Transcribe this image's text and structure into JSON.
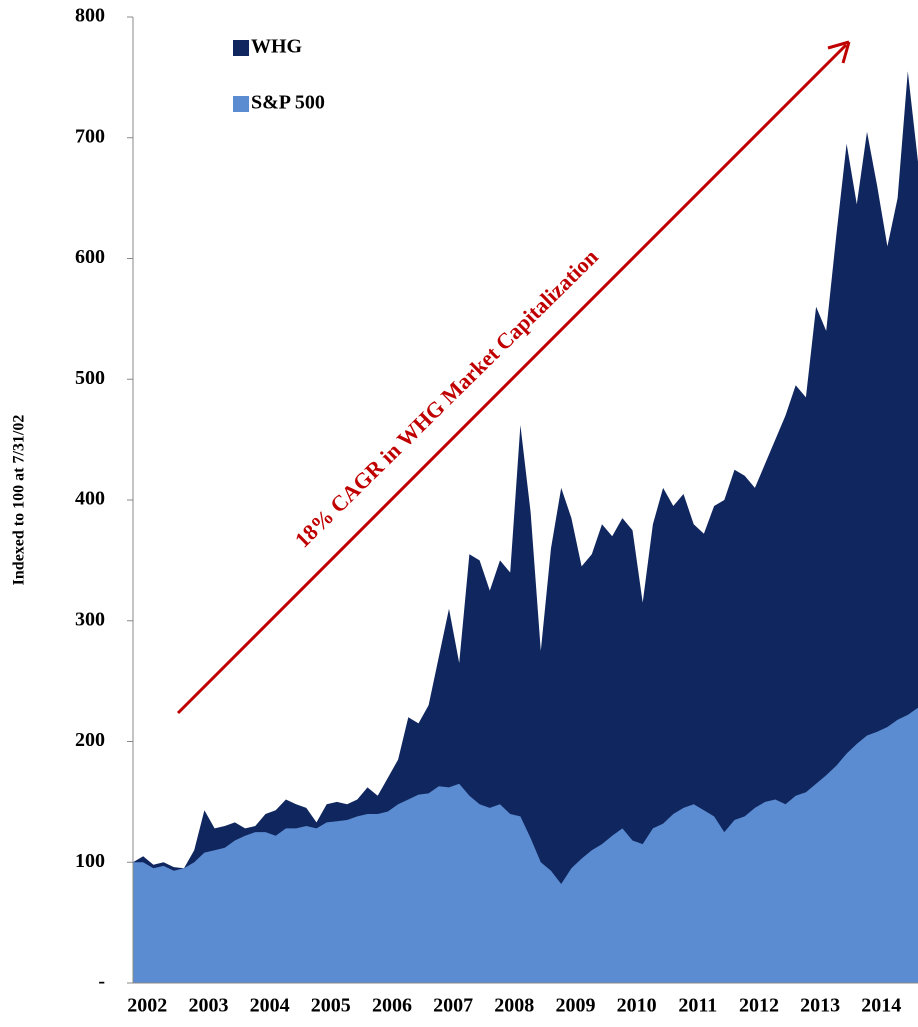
{
  "chart_data": {
    "type": "area",
    "y_axis_label": "Indexed to 100 at 7/31/02",
    "annotation": "18% CAGR in WHG Market Capitalization",
    "legend_position": "top-left",
    "categories": [
      null,
      "2002",
      null,
      null,
      null,
      null,
      null,
      "2003",
      null,
      null,
      null,
      null,
      null,
      "2004",
      null,
      null,
      null,
      null,
      null,
      "2005",
      null,
      null,
      null,
      null,
      null,
      "2006",
      null,
      null,
      null,
      null,
      null,
      "2007",
      null,
      null,
      null,
      null,
      null,
      "2008",
      null,
      null,
      null,
      null,
      null,
      "2009",
      null,
      null,
      null,
      null,
      null,
      "2010",
      null,
      null,
      null,
      null,
      null,
      "2011",
      null,
      null,
      null,
      null,
      null,
      "2012",
      null,
      null,
      null,
      null,
      null,
      "2013",
      null,
      null,
      null,
      null,
      null,
      "2014",
      null,
      null,
      null,
      null
    ],
    "series": [
      {
        "name": "WHG",
        "color": "#10265e",
        "values": [
          100,
          105,
          98,
          100,
          96,
          95,
          110,
          143,
          128,
          130,
          133,
          128,
          130,
          140,
          143,
          152,
          148,
          145,
          133,
          148,
          150,
          148,
          152,
          162,
          155,
          170,
          185,
          220,
          215,
          230,
          270,
          310,
          265,
          355,
          350,
          325,
          350,
          340,
          462,
          390,
          275,
          360,
          410,
          385,
          345,
          355,
          380,
          370,
          385,
          375,
          315,
          380,
          410,
          395,
          405,
          380,
          372,
          395,
          400,
          425,
          420,
          410,
          430,
          450,
          470,
          495,
          485,
          560,
          540,
          620,
          695,
          645,
          705,
          660,
          610,
          650,
          755,
          680
        ]
      },
      {
        "name": "S&P 500",
        "color": "#5b8bd0",
        "values": [
          100,
          100,
          95,
          97,
          93,
          95,
          100,
          108,
          110,
          112,
          118,
          122,
          125,
          125,
          122,
          128,
          128,
          130,
          128,
          133,
          134,
          135,
          138,
          140,
          140,
          142,
          148,
          152,
          156,
          157,
          163,
          162,
          165,
          155,
          148,
          145,
          148,
          140,
          138,
          120,
          100,
          93,
          82,
          95,
          103,
          110,
          115,
          122,
          128,
          118,
          115,
          128,
          132,
          140,
          145,
          148,
          143,
          138,
          125,
          135,
          138,
          145,
          150,
          152,
          148,
          155,
          158,
          165,
          172,
          180,
          190,
          198,
          205,
          208,
          212,
          218,
          222,
          228
        ]
      }
    ],
    "ylim": [
      0,
      800
    ],
    "yticks": [
      {
        "value": 0,
        "label": "-"
      },
      100,
      200,
      300,
      400,
      500,
      600,
      700,
      800
    ]
  }
}
